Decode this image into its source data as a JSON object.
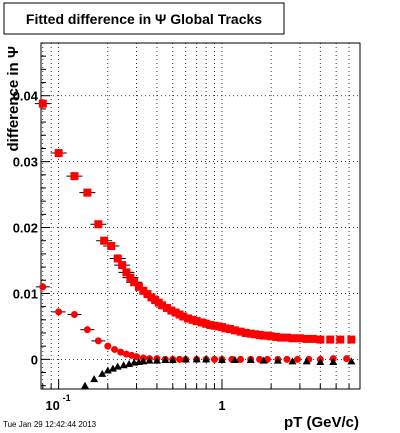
{
  "chart_data": {
    "type": "scatter",
    "title": "Fitted difference in Ψ  Global Tracks",
    "xlabel": "pT (GeV/c)",
    "ylabel": "difference in Ψ",
    "x_scale": "log",
    "xlim": [
      0.078,
      7.0
    ],
    "ylim": [
      -0.0045,
      0.048
    ],
    "grid": true,
    "y_ticks": [
      {
        "value": 0,
        "label": "0"
      },
      {
        "value": 0.01,
        "label": "0.01"
      },
      {
        "value": 0.02,
        "label": "0.02"
      },
      {
        "value": 0.03,
        "label": "0.03"
      },
      {
        "value": 0.04,
        "label": "0.04"
      }
    ],
    "x_tick_labels": [
      {
        "value": 0.1,
        "base": "10",
        "exp": "-1"
      },
      {
        "value": 1,
        "base": "1",
        "exp": ""
      }
    ],
    "timestamp": "Tue Jan 29 12:42:44 2013",
    "series": [
      {
        "marker": "square",
        "color": "#ff0000",
        "x": [
          0.08,
          0.1,
          0.125,
          0.15,
          0.175,
          0.19,
          0.21,
          0.23,
          0.245,
          0.26,
          0.275,
          0.29,
          0.31,
          0.33,
          0.35,
          0.37,
          0.39,
          0.41,
          0.43,
          0.46,
          0.49,
          0.52,
          0.55,
          0.58,
          0.62,
          0.66,
          0.7,
          0.75,
          0.8,
          0.85,
          0.9,
          0.95,
          1.0,
          1.05,
          1.12,
          1.2,
          1.3,
          1.4,
          1.5,
          1.6,
          1.7,
          1.8,
          1.9,
          2.0,
          2.15,
          2.3,
          2.5,
          2.7,
          3.0,
          3.3,
          3.6,
          4.0,
          4.6,
          5.3,
          6.2
        ],
        "y": [
          0.0388,
          0.0313,
          0.0278,
          0.0253,
          0.0205,
          0.018,
          0.0172,
          0.0153,
          0.0143,
          0.0132,
          0.0124,
          0.0117,
          0.011,
          0.0104,
          0.0099,
          0.0094,
          0.009,
          0.0086,
          0.0082,
          0.0078,
          0.0074,
          0.0071,
          0.0068,
          0.0065,
          0.0062,
          0.006,
          0.0058,
          0.0056,
          0.0054,
          0.0052,
          0.0051,
          0.005,
          0.0049,
          0.0047,
          0.0046,
          0.0044,
          0.0042,
          0.004,
          0.0039,
          0.0038,
          0.0037,
          0.0036,
          0.0036,
          0.0035,
          0.0034,
          0.0033,
          0.0033,
          0.0032,
          0.0032,
          0.0031,
          0.0031,
          0.003,
          0.003,
          0.003,
          0.003
        ]
      },
      {
        "marker": "circle",
        "color": "#ff0000",
        "x": [
          0.08,
          0.1,
          0.125,
          0.15,
          0.175,
          0.2,
          0.22,
          0.24,
          0.26,
          0.28,
          0.3,
          0.33,
          0.36,
          0.4,
          0.45,
          0.5,
          0.55,
          0.6,
          0.7,
          0.8,
          0.9,
          1.0,
          1.15,
          1.3,
          1.5,
          1.7,
          1.9,
          2.2,
          2.5,
          2.9,
          3.4,
          4.0,
          4.8,
          5.8
        ],
        "y": [
          0.011,
          0.0072,
          0.0068,
          0.0045,
          0.0028,
          0.002,
          0.0015,
          0.0011,
          0.0008,
          0.0006,
          0.0004,
          0.0002,
          0.0001,
          0.0001,
          0.0,
          0.0,
          0.0,
          0.0,
          0.0,
          0.0,
          0.0,
          0.0,
          0.0,
          0.0,
          0.0,
          0.0,
          0.0,
          0.0,
          0.0,
          0.0,
          0.0,
          0.0,
          0.0001,
          0.0001
        ]
      },
      {
        "marker": "triangle",
        "color": "#000000",
        "x": [
          0.145,
          0.165,
          0.185,
          0.2,
          0.215,
          0.23,
          0.25,
          0.27,
          0.29,
          0.31,
          0.33,
          0.36,
          0.4,
          0.45,
          0.5,
          0.6,
          0.7,
          0.8,
          1.0,
          1.2,
          1.5,
          1.8,
          2.2,
          2.7,
          3.3,
          4.0,
          4.8,
          6.2
        ],
        "y": [
          -0.004,
          -0.003,
          -0.0022,
          -0.0017,
          -0.0014,
          -0.0011,
          -0.0009,
          -0.0007,
          -0.0005,
          -0.0004,
          -0.0003,
          -0.0002,
          -0.0002,
          -0.0001,
          -0.0001,
          0.0,
          0.0,
          0.0,
          -0.0001,
          -0.0001,
          -0.0001,
          -0.0002,
          -0.0002,
          -0.0003,
          -0.0003,
          -0.0004,
          -0.0004,
          -0.0003
        ]
      }
    ]
  }
}
